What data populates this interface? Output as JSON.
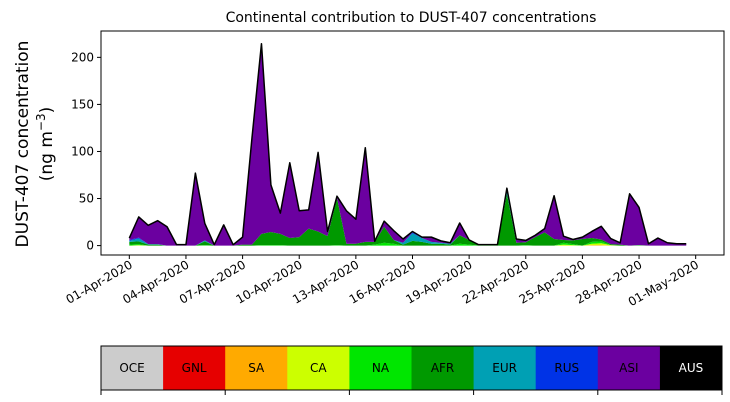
{
  "chart_data": {
    "type": "area",
    "title": "Continental contribution to DUST-407 concentrations",
    "ylabel_line1": "DUST-407 concentration",
    "ylabel_line2_prefix": "(ng m",
    "ylabel_line2_exp": "−3",
    "ylabel_line2_suffix": ")",
    "ylim": [
      -10,
      228
    ],
    "y_ticks": [
      0,
      50,
      100,
      150,
      200
    ],
    "x_tick_labels": [
      "01-Apr-2020",
      "04-Apr-2020",
      "07-Apr-2020",
      "10-Apr-2020",
      "13-Apr-2020",
      "16-Apr-2020",
      "19-Apr-2020",
      "22-Apr-2020",
      "25-Apr-2020",
      "28-Apr-2020",
      "01-May-2020"
    ],
    "x_tick_days": [
      0,
      3,
      6,
      9,
      12,
      15,
      18,
      21,
      24,
      27,
      30
    ],
    "xlim_days": [
      -1.5,
      31.5
    ],
    "x_days": [
      0,
      0.5,
      1,
      1.5,
      2,
      2.5,
      3,
      3.5,
      4,
      4.5,
      5,
      5.5,
      6,
      6.5,
      7,
      7.5,
      8,
      8.5,
      9,
      9.5,
      10,
      10.5,
      11,
      11.5,
      12,
      12.5,
      13,
      13.5,
      14,
      14.5,
      15,
      15.5,
      16,
      16.5,
      17,
      17.5,
      18,
      18.5,
      19,
      19.5,
      20,
      20.5,
      21,
      21.5,
      22,
      22.5,
      23,
      23.5,
      24,
      24.5,
      25,
      25.5,
      26,
      26.5,
      27,
      27.5,
      28,
      28.5,
      29,
      29.5
    ],
    "series": [
      {
        "name": "OCE",
        "color": "#cccccc",
        "values": [
          0,
          0,
          0,
          0,
          0,
          0,
          0,
          0,
          0,
          0,
          0,
          0,
          0,
          0,
          0,
          0,
          0,
          0,
          0,
          0,
          0,
          0,
          0,
          0,
          0,
          0,
          0,
          0,
          0,
          0,
          0,
          0,
          0,
          0,
          0,
          0,
          0,
          0,
          0,
          0,
          0,
          0,
          0,
          0,
          0,
          0,
          0,
          0,
          0,
          0,
          0,
          0,
          0,
          0,
          0,
          0,
          0,
          0,
          0,
          0
        ]
      },
      {
        "name": "GNL",
        "color": "#e60000",
        "values": [
          0,
          0,
          0,
          0,
          0,
          0,
          0,
          0,
          0,
          0,
          0,
          0,
          0,
          0,
          0,
          0,
          0,
          0,
          0,
          0,
          0,
          0,
          0,
          0,
          0,
          0,
          0,
          0,
          0,
          0,
          0,
          0,
          0,
          0,
          0,
          0,
          0,
          0,
          0,
          0,
          0,
          0,
          0,
          0,
          0,
          0,
          0,
          0,
          0,
          0,
          0,
          0,
          0,
          0,
          0,
          0,
          0,
          0,
          0,
          0
        ]
      },
      {
        "name": "SA",
        "color": "#ffaa00",
        "values": [
          0,
          0,
          0,
          0,
          0,
          0,
          0,
          0,
          0,
          0,
          0,
          0,
          0,
          0,
          0,
          0,
          0,
          0,
          0,
          0,
          0,
          0,
          0,
          0,
          0,
          0,
          0,
          0,
          0,
          0,
          0,
          0,
          0,
          0,
          0,
          0,
          0,
          0,
          0,
          0,
          0,
          0,
          0,
          0,
          0,
          0,
          0,
          0,
          0,
          0.5,
          0.5,
          0,
          0,
          0,
          0,
          0,
          0,
          0,
          0,
          0
        ]
      },
      {
        "name": "CA",
        "color": "#ccff00",
        "values": [
          0,
          0.5,
          0,
          0,
          0,
          0,
          0,
          0,
          0,
          0,
          0,
          0,
          0,
          0,
          0,
          0,
          0,
          0,
          0,
          0,
          0,
          0,
          0,
          0,
          0,
          0,
          0,
          0,
          0,
          0,
          0,
          0,
          0,
          0,
          0,
          0,
          0,
          0,
          0,
          0,
          0,
          0,
          0,
          0,
          0,
          0,
          1,
          0.5,
          0,
          1.5,
          2,
          0.5,
          0,
          0,
          0,
          0,
          0,
          0,
          0,
          0
        ]
      },
      {
        "name": "NA",
        "color": "#00e600",
        "values": [
          1,
          1,
          0,
          0,
          0,
          0,
          0,
          0,
          0.5,
          0,
          0,
          0,
          0,
          0,
          0.5,
          0.5,
          0.5,
          0,
          0,
          0,
          0,
          0,
          0.5,
          0,
          0,
          0,
          1,
          3,
          2,
          0,
          0,
          0,
          0,
          0,
          0,
          2,
          1,
          0,
          0,
          0,
          0,
          0,
          0.5,
          0,
          0,
          0,
          2,
          1,
          0,
          2,
          2,
          0,
          0,
          0,
          0.5,
          0,
          0,
          0,
          0,
          0
        ]
      },
      {
        "name": "AFR",
        "color": "#009900",
        "values": [
          3,
          3,
          1,
          1,
          0,
          0,
          0,
          0,
          4,
          0,
          0,
          0,
          1,
          1,
          12,
          14,
          12,
          8,
          9,
          18,
          15,
          10,
          50,
          2,
          2,
          4,
          3,
          17,
          4,
          1,
          5,
          4,
          2,
          2,
          1,
          9,
          5,
          1,
          1,
          1,
          55,
          3,
          3,
          9,
          14,
          7,
          3,
          4,
          7,
          4,
          2,
          1,
          1,
          0,
          0,
          0,
          0,
          0,
          0,
          0
        ]
      },
      {
        "name": "EUR",
        "color": "#00a0b4",
        "values": [
          1,
          3,
          0.5,
          0.5,
          0,
          0,
          0,
          0,
          1,
          0,
          0,
          0,
          0,
          0,
          0,
          0,
          0,
          0,
          0,
          0,
          0,
          0,
          0,
          0,
          0,
          0,
          0,
          0,
          0,
          2,
          8,
          4,
          2,
          1,
          1,
          0,
          0,
          0,
          0,
          0,
          3,
          0,
          0,
          0,
          0,
          0,
          0,
          0,
          0,
          0,
          0,
          0,
          0,
          0,
          0,
          0,
          0,
          0,
          0,
          0
        ]
      },
      {
        "name": "RUS",
        "color": "#0033e6",
        "values": [
          1,
          1,
          0,
          0,
          0,
          0,
          0,
          0,
          0,
          0,
          0,
          0,
          0,
          0,
          0,
          0,
          0,
          0,
          0,
          0,
          0,
          0,
          0,
          0,
          0,
          0,
          0,
          0,
          0,
          0,
          1,
          0,
          0,
          0,
          0,
          0,
          0,
          0,
          0,
          0,
          0,
          0,
          0,
          0,
          0,
          0,
          0,
          0,
          0,
          0,
          0,
          0,
          0,
          0,
          0,
          0,
          0,
          0,
          0,
          0
        ]
      },
      {
        "name": "ASI",
        "color": "#6b00a0",
        "values": [
          2,
          22,
          20,
          25,
          20,
          1,
          1,
          77,
          18,
          1,
          22,
          1,
          8,
          114,
          202,
          50,
          22,
          80,
          28,
          20,
          84,
          5,
          2,
          35,
          26,
          100,
          0.5,
          6,
          10,
          4,
          1,
          1,
          5,
          2,
          1,
          13,
          0,
          0,
          0,
          0,
          3,
          4,
          2,
          2,
          4,
          46,
          4,
          1,
          2,
          7,
          14,
          6,
          2,
          55,
          40,
          2,
          8,
          3,
          2,
          2
        ]
      },
      {
        "name": "AUS",
        "color": "#000000",
        "values": [
          0,
          0,
          0,
          0,
          0,
          0,
          0,
          0,
          0,
          0,
          0,
          0,
          0,
          0,
          0,
          0,
          0,
          0,
          0,
          0,
          0,
          0,
          0,
          0,
          0,
          0,
          0,
          0,
          0,
          0,
          0,
          0,
          0,
          0,
          0,
          0,
          0,
          0,
          0,
          0,
          0,
          0,
          0,
          0,
          0,
          0,
          0,
          0,
          0,
          0,
          0,
          0,
          0,
          0,
          0,
          0,
          0,
          0,
          0,
          0
        ]
      }
    ],
    "legend_text_colors": [
      "#000000",
      "#000000",
      "#000000",
      "#000000",
      "#000000",
      "#000000",
      "#000000",
      "#000000",
      "#000000",
      "#ffffff"
    ]
  }
}
